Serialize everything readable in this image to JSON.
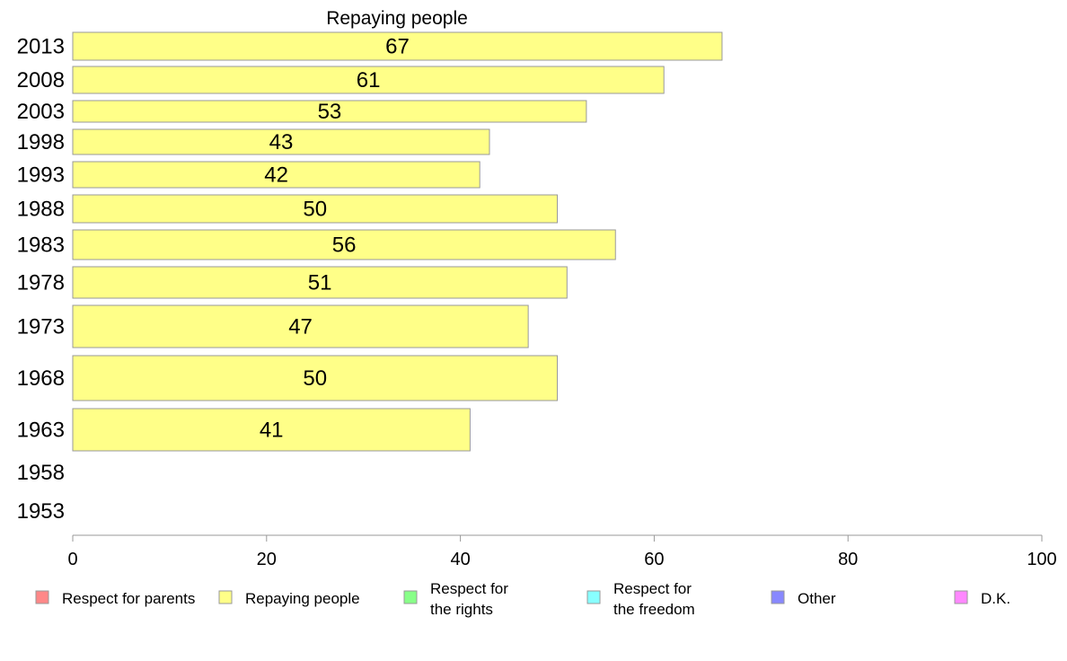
{
  "chart_data": {
    "type": "bar",
    "orientation": "horizontal",
    "title": "Repaying people",
    "categories": [
      "2013",
      "2008",
      "2003",
      "1998",
      "1993",
      "1988",
      "1983",
      "1978",
      "1973",
      "1968",
      "1963",
      "1958",
      "1953"
    ],
    "series": [
      {
        "name": "Repaying people",
        "color": "#ffff88",
        "values": [
          67,
          61,
          53,
          43,
          42,
          50,
          56,
          51,
          47,
          50,
          41,
          null,
          null
        ]
      }
    ],
    "xlim": [
      0,
      100
    ],
    "xticks": [
      "0",
      "20",
      "40",
      "60",
      "80",
      "100"
    ],
    "grid": false,
    "legend_position": "bottom",
    "legend": [
      {
        "label": [
          "Respect for parents"
        ],
        "color": "#ff8888"
      },
      {
        "label": [
          "Repaying people"
        ],
        "color": "#ffff88"
      },
      {
        "label": [
          "Respect for",
          "the rights"
        ],
        "color": "#88ff88"
      },
      {
        "label": [
          "Respect for",
          "the freedom"
        ],
        "color": "#88ffff"
      },
      {
        "label": [
          "Other"
        ],
        "color": "#8888ff"
      },
      {
        "label": [
          "D.K."
        ],
        "color": "#ff88ff"
      }
    ]
  }
}
